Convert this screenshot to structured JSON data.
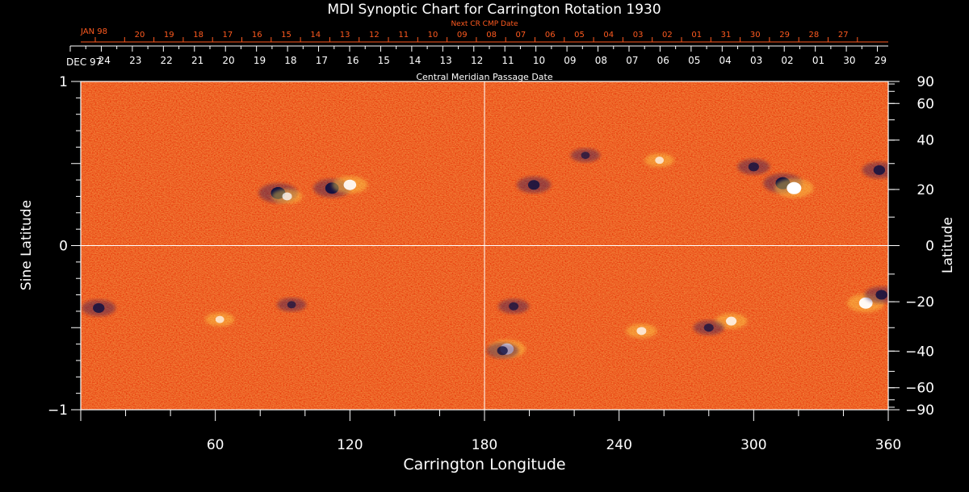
{
  "chart_data": {
    "type": "heatmap",
    "title": "MDI Synoptic Chart for Carrington Rotation 1930",
    "xlabel": "Carrington Longitude",
    "ylabel_left": "Sine Latitude",
    "ylabel_right": "Latitude",
    "xlim": [
      0,
      360
    ],
    "ylim": [
      -1,
      1
    ],
    "x_ticks": [
      "60",
      "120",
      "180",
      "240",
      "300",
      "360"
    ],
    "x_tick_values": [
      60,
      120,
      180,
      240,
      300,
      360
    ],
    "y_ticks_left": [
      {
        "v": 1,
        "label": "1"
      },
      {
        "v": 0,
        "label": "0"
      },
      {
        "v": -1,
        "label": "−1"
      }
    ],
    "y_ticks_right": [
      {
        "deg": 90,
        "label": "90"
      },
      {
        "deg": 60,
        "label": "60"
      },
      {
        "deg": 40,
        "label": "40"
      },
      {
        "deg": 20,
        "label": "20"
      },
      {
        "deg": 0,
        "label": "0"
      },
      {
        "deg": -20,
        "label": "−20"
      },
      {
        "deg": -40,
        "label": "−40"
      },
      {
        "deg": -60,
        "label": "−60"
      },
      {
        "deg": -90,
        "label": "−90"
      }
    ],
    "cmp_axis": {
      "label": "Central Meridian Passage Date",
      "start_label": "DEC 97",
      "dates": [
        "24",
        "23",
        "22",
        "21",
        "20",
        "19",
        "18",
        "17",
        "16",
        "15",
        "14",
        "13",
        "12",
        "11",
        "10",
        "09",
        "08",
        "07",
        "06",
        "05",
        "04",
        "03",
        "02",
        "01",
        "30",
        "29"
      ]
    },
    "next_cr_axis": {
      "label": "Next CR CMP Date",
      "start_label": "JAN 98",
      "dates": [
        "20",
        "19",
        "18",
        "17",
        "16",
        "15",
        "14",
        "13",
        "12",
        "11",
        "10",
        "09",
        "08",
        "07",
        "06",
        "05",
        "04",
        "03",
        "02",
        "01",
        "31",
        "30",
        "29",
        "28",
        "27"
      ]
    },
    "guide_lines": {
      "longitude": 180,
      "sine_latitude": 0
    },
    "active_regions": [
      {
        "lon": 88,
        "sinlat": 0.32,
        "polarity": "negative",
        "strength": 1.0
      },
      {
        "lon": 92,
        "sinlat": 0.3,
        "polarity": "positive",
        "strength": 0.5
      },
      {
        "lon": 112,
        "sinlat": 0.35,
        "polarity": "negative",
        "strength": 0.9
      },
      {
        "lon": 120,
        "sinlat": 0.37,
        "polarity": "positive",
        "strength": 0.8
      },
      {
        "lon": 202,
        "sinlat": 0.37,
        "polarity": "negative",
        "strength": 0.7
      },
      {
        "lon": 313,
        "sinlat": 0.38,
        "polarity": "negative",
        "strength": 1.0
      },
      {
        "lon": 318,
        "sinlat": 0.35,
        "polarity": "positive",
        "strength": 1.0
      },
      {
        "lon": 300,
        "sinlat": 0.48,
        "polarity": "negative",
        "strength": 0.6
      },
      {
        "lon": 356,
        "sinlat": 0.46,
        "polarity": "negative",
        "strength": 0.7
      },
      {
        "lon": 350,
        "sinlat": -0.35,
        "polarity": "positive",
        "strength": 0.9
      },
      {
        "lon": 357,
        "sinlat": -0.3,
        "polarity": "negative",
        "strength": 0.7
      },
      {
        "lon": 8,
        "sinlat": -0.38,
        "polarity": "negative",
        "strength": 0.7
      },
      {
        "lon": 190,
        "sinlat": -0.63,
        "polarity": "positive",
        "strength": 0.9
      },
      {
        "lon": 188,
        "sinlat": -0.64,
        "polarity": "negative",
        "strength": 0.6
      },
      {
        "lon": 193,
        "sinlat": -0.37,
        "polarity": "negative",
        "strength": 0.5
      },
      {
        "lon": 290,
        "sinlat": -0.46,
        "polarity": "positive",
        "strength": 0.6
      },
      {
        "lon": 280,
        "sinlat": -0.5,
        "polarity": "negative",
        "strength": 0.5
      },
      {
        "lon": 250,
        "sinlat": -0.52,
        "polarity": "positive",
        "strength": 0.5
      },
      {
        "lon": 62,
        "sinlat": -0.45,
        "polarity": "positive",
        "strength": 0.4
      },
      {
        "lon": 94,
        "sinlat": -0.36,
        "polarity": "negative",
        "strength": 0.4
      },
      {
        "lon": 258,
        "sinlat": 0.52,
        "polarity": "positive",
        "strength": 0.4
      },
      {
        "lon": 225,
        "sinlat": 0.55,
        "polarity": "negative",
        "strength": 0.4
      }
    ],
    "colors": {
      "background": "#000000",
      "text": "#ffffff",
      "next_cr_text": "#ff5a1f",
      "field_neutral": "#e8400f",
      "field_positive": "#ffffff",
      "field_negative": "#101040"
    }
  }
}
